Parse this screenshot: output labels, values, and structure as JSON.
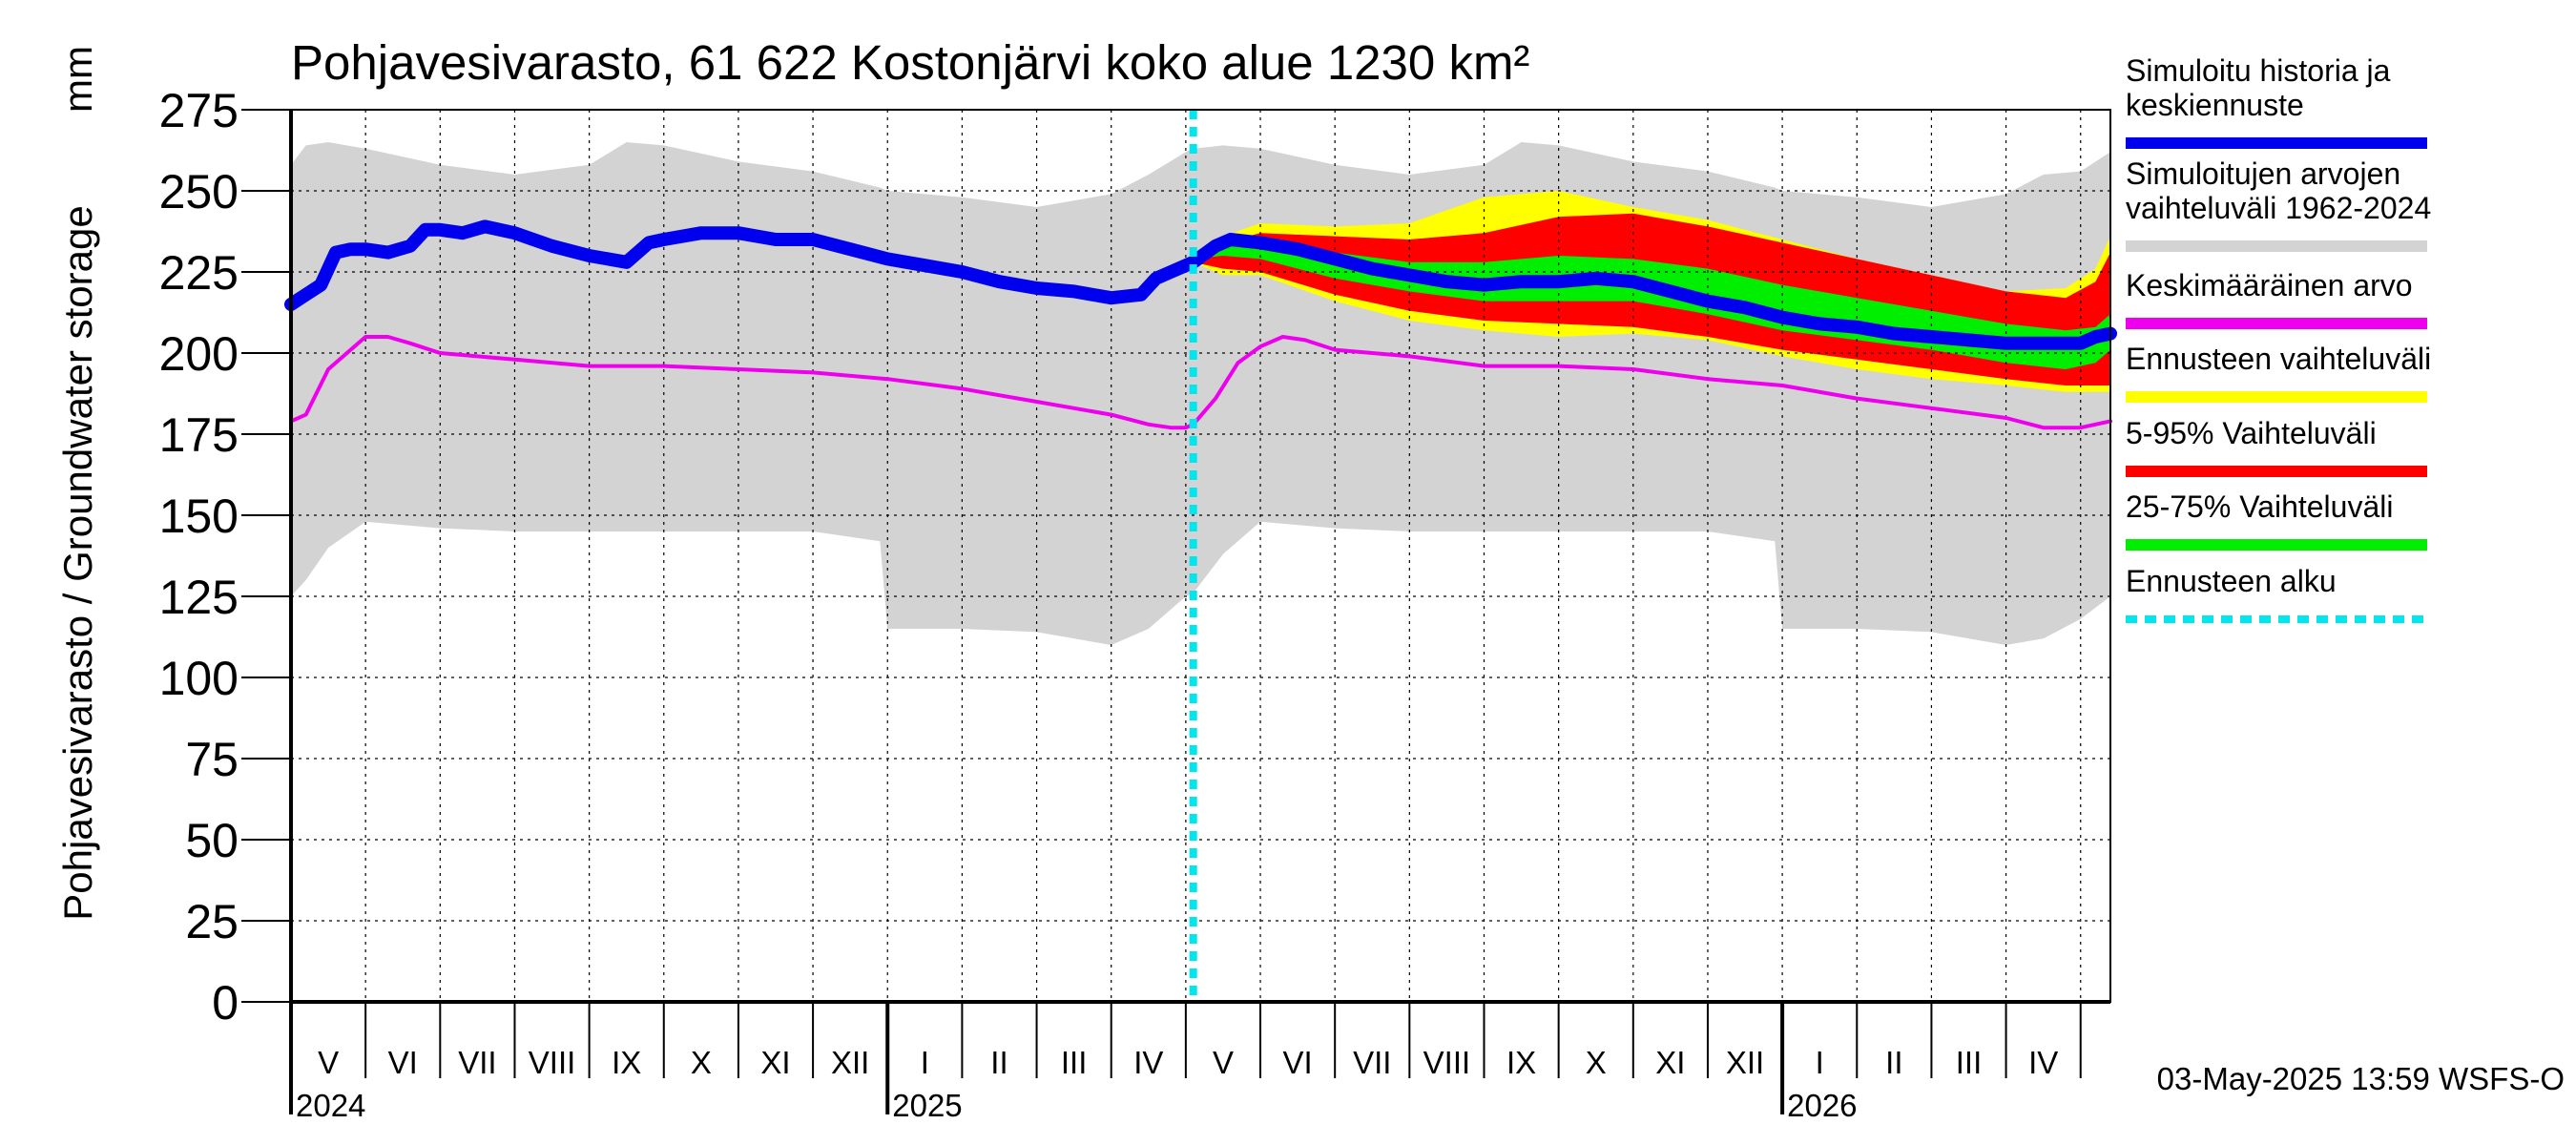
{
  "chart_data": {
    "type": "area",
    "title": "Pohjavesivarasto, 61 622 Kostonjärvi koko alue 1230 km²",
    "ylabel": "Pohjavesivarasto / Groundwater storage",
    "yunit": "mm",
    "ylim": [
      0,
      275
    ],
    "yticks": [
      0,
      25,
      50,
      75,
      100,
      125,
      150,
      175,
      200,
      225,
      250,
      275
    ],
    "xlim": [
      0,
      24.4
    ],
    "months": [
      {
        "label": "V",
        "start": 0
      },
      {
        "label": "VI",
        "start": 1
      },
      {
        "label": "VII",
        "start": 2
      },
      {
        "label": "VIII",
        "start": 3
      },
      {
        "label": "IX",
        "start": 4
      },
      {
        "label": "X",
        "start": 5
      },
      {
        "label": "XI",
        "start": 6
      },
      {
        "label": "XII",
        "start": 7
      },
      {
        "label": "I",
        "start": 8
      },
      {
        "label": "II",
        "start": 9
      },
      {
        "label": "III",
        "start": 10
      },
      {
        "label": "IV",
        "start": 11
      },
      {
        "label": "V",
        "start": 12
      },
      {
        "label": "VI",
        "start": 13
      },
      {
        "label": "VII",
        "start": 14
      },
      {
        "label": "VIII",
        "start": 15
      },
      {
        "label": "IX",
        "start": 16
      },
      {
        "label": "X",
        "start": 17
      },
      {
        "label": "XI",
        "start": 18
      },
      {
        "label": "XII",
        "start": 19
      },
      {
        "label": "I",
        "start": 20
      },
      {
        "label": "II",
        "start": 21
      },
      {
        "label": "III",
        "start": 22
      },
      {
        "label": "IV",
        "start": 23
      },
      {
        "label": "",
        "start": 24
      }
    ],
    "years": [
      {
        "label": "2024",
        "at": 0
      },
      {
        "label": "2025",
        "at": 8
      },
      {
        "label": "2026",
        "at": 20
      }
    ],
    "forecast_start": 12.1,
    "series": [
      {
        "name": "Simuloitujen arvojen vaihteluväli 1962-2024",
        "kind": "band",
        "color": "#d3d3d3",
        "x": [
          0,
          0.2,
          0.5,
          1,
          2,
          3,
          4,
          4.5,
          5,
          6,
          7,
          7.9,
          8,
          9,
          10,
          11,
          11.5,
          12,
          12.1,
          12.5,
          13,
          14,
          15,
          16,
          16.5,
          17,
          18,
          19,
          19.9,
          20,
          21,
          22,
          23,
          23.5,
          24,
          24.4
        ],
        "upper": [
          258,
          264,
          265,
          263,
          258,
          255,
          258,
          265,
          264,
          259,
          256,
          251,
          250,
          248,
          245,
          249,
          255,
          262,
          263,
          264,
          263,
          258,
          255,
          258,
          265,
          264,
          259,
          256,
          251,
          250,
          248,
          245,
          249,
          255,
          256,
          262
        ],
        "lower": [
          125,
          130,
          140,
          148,
          146,
          145,
          145,
          145,
          145,
          145,
          145,
          142,
          115,
          115,
          114,
          110,
          115,
          125,
          126,
          138,
          148,
          146,
          145,
          145,
          145,
          145,
          145,
          145,
          142,
          115,
          115,
          114,
          110,
          112,
          118,
          125
        ]
      },
      {
        "name": "Ennusteen vaihteluväli",
        "kind": "band",
        "color": "#ffff00",
        "x": [
          12.1,
          12.5,
          13,
          14,
          15,
          16,
          17,
          18,
          19,
          20,
          21,
          22,
          23,
          23.8,
          24.2,
          24.4
        ],
        "upper": [
          228,
          236,
          240,
          239,
          240,
          248,
          250,
          245,
          241,
          235,
          229,
          224,
          219,
          220,
          226,
          236
        ],
        "lower": [
          228,
          224,
          224,
          216,
          210,
          207,
          205,
          206,
          204,
          199,
          195,
          192,
          190,
          188,
          188,
          188
        ]
      },
      {
        "name": "5-95% Vaihteluväli",
        "kind": "band",
        "color": "#ff0000",
        "x": [
          12.1,
          12.5,
          13,
          14,
          15,
          16,
          17,
          18,
          19,
          20,
          21,
          22,
          23,
          23.8,
          24.2,
          24.4
        ],
        "upper": [
          228,
          234,
          237,
          236,
          235,
          237,
          242,
          243,
          239,
          234,
          229,
          224,
          219,
          217,
          222,
          231
        ],
        "lower": [
          228,
          226,
          225,
          218,
          213,
          210,
          209,
          208,
          205,
          201,
          198,
          195,
          192,
          190,
          190,
          190
        ]
      },
      {
        "name": "25-75% Vaihteluväli",
        "kind": "band",
        "color": "#00ee00",
        "x": [
          12.1,
          12.5,
          13,
          14,
          15,
          16,
          17,
          18,
          19,
          20,
          21,
          22,
          23,
          23.8,
          24.2,
          24.4
        ],
        "upper": [
          229,
          233,
          234,
          231,
          228,
          228,
          230,
          229,
          226,
          221,
          217,
          213,
          209,
          207,
          208,
          212
        ],
        "lower": [
          229,
          230,
          229,
          223,
          219,
          216,
          216,
          216,
          212,
          207,
          204,
          201,
          197,
          195,
          197,
          201
        ]
      },
      {
        "name": "Simuloitu historia ja keskiennuste",
        "kind": "line",
        "color": "#0000ee",
        "x": [
          0,
          0.2,
          0.4,
          0.6,
          0.8,
          1,
          1.3,
          1.6,
          1.8,
          2,
          2.3,
          2.6,
          3,
          3.5,
          4,
          4.5,
          4.8,
          5,
          5.5,
          6,
          6.5,
          7,
          7.5,
          8,
          8.5,
          9,
          9.5,
          10,
          10.5,
          11,
          11.4,
          11.6,
          11.8,
          12,
          12.1,
          12.4,
          12.6,
          13,
          13.5,
          14,
          14.5,
          15,
          15.5,
          16,
          16.5,
          17,
          17.5,
          18,
          18.5,
          19,
          19.5,
          20,
          20.5,
          21,
          21.5,
          22,
          22.5,
          23,
          23.5,
          24,
          24.2,
          24.4
        ],
        "values": [
          215,
          218,
          221,
          231,
          232,
          232,
          231,
          233,
          238,
          238,
          237,
          239,
          237,
          233,
          230,
          228,
          234,
          235,
          237,
          237,
          235,
          235,
          232,
          229,
          227,
          225,
          222,
          220,
          219,
          217,
          218,
          223,
          225,
          227,
          228,
          233,
          235,
          234,
          232,
          229,
          226,
          224,
          222,
          221,
          222,
          222,
          223,
          222,
          219,
          216,
          214,
          211,
          209,
          208,
          206,
          205,
          204,
          203,
          203,
          203,
          205,
          206
        ]
      },
      {
        "name": "Keskimääräinen arvo",
        "kind": "line",
        "color": "#ee00ee",
        "x": [
          0,
          0.2,
          0.5,
          0.8,
          1,
          1.3,
          1.6,
          2,
          3,
          4,
          5,
          6,
          7,
          8,
          9,
          10,
          11,
          11.5,
          11.8,
          12,
          12.1,
          12.4,
          12.7,
          13,
          13.3,
          13.6,
          14,
          15,
          16,
          17,
          18,
          19,
          20,
          21,
          22,
          23,
          23.5,
          24,
          24.2,
          24.4
        ],
        "values": [
          179,
          181,
          195,
          201,
          205,
          205,
          203,
          200,
          198,
          196,
          196,
          195,
          194,
          192,
          189,
          185,
          181,
          178,
          177,
          177,
          178,
          186,
          197,
          202,
          205,
          204,
          201,
          199,
          196,
          196,
          195,
          192,
          190,
          186,
          183,
          180,
          177,
          177,
          178,
          179
        ]
      }
    ],
    "forecast_line": {
      "name": "Ennusteen alku",
      "color": "#00e5ee"
    },
    "legend": [
      {
        "label": "Simuloitu historia ja keskiennuste",
        "color": "#0000ee"
      },
      {
        "label": "Simuloitujen arvojen vaihteluväli 1962-2024",
        "color": "#d3d3d3"
      },
      {
        "label": "Keskimääräinen arvo",
        "color": "#ee00ee"
      },
      {
        "label": "Ennusteen vaihteluväli",
        "color": "#ffff00"
      },
      {
        "label": "5-95% Vaihteluväli",
        "color": "#ff0000"
      },
      {
        "label": "25-75% Vaihteluväli",
        "color": "#00ee00"
      },
      {
        "label": "Ennusteen alku",
        "color": "#00e5ee",
        "dashed": true
      }
    ],
    "legend_position": "right",
    "footer": "03-May-2025 13:59 WSFS-O"
  }
}
